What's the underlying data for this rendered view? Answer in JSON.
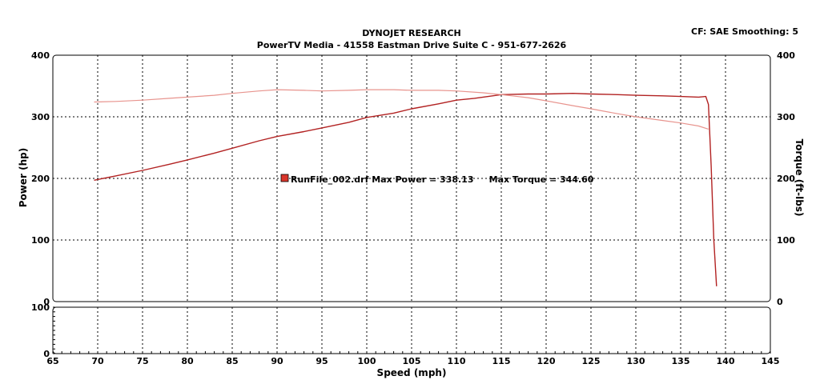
{
  "header": {
    "title": "DYNOJET RESEARCH",
    "subtitle": "PowerTV Media - 41558 Eastman Drive Suite C - 951-677-2626",
    "settings": "CF: SAE  Smoothing: 5"
  },
  "colors": {
    "power": "#b22222",
    "torque": "#e8948e",
    "legend_swatch": "#d9352b"
  },
  "chart_data": [
    {
      "type": "line",
      "xlabel": "Speed (mph)",
      "ylabel": "Power (hp)",
      "y2label": "Torque (ft-lbs)",
      "xlim": [
        65,
        145
      ],
      "ylim": [
        0,
        400
      ],
      "y2lim": [
        0,
        400
      ],
      "xticks": [
        65,
        70,
        75,
        80,
        85,
        90,
        95,
        100,
        105,
        110,
        115,
        120,
        125,
        130,
        135,
        140,
        145
      ],
      "yticks": [
        0,
        100,
        200,
        300,
        400
      ],
      "grid": true,
      "legend": {
        "text": "RunFile_002.drf Max Power = 338.13     Max Torque = 344.60",
        "position": "center"
      },
      "series": [
        {
          "role": "power",
          "x": [
            69.6,
            72,
            75,
            78,
            80,
            83,
            85,
            88,
            90,
            93,
            95,
            98,
            100,
            103,
            105,
            108,
            110,
            112,
            115,
            118,
            120,
            123,
            125,
            128,
            130,
            133,
            135,
            137,
            137.8,
            138.1,
            138.4,
            138.7,
            139.0
          ],
          "y": [
            197,
            204,
            213,
            223,
            230,
            241,
            249,
            261,
            268,
            276,
            282,
            291,
            299,
            306,
            313,
            321,
            327,
            330,
            336,
            337,
            337,
            338,
            337,
            336,
            335,
            334,
            333,
            332,
            333,
            320,
            220,
            100,
            25
          ]
        },
        {
          "role": "torque",
          "x": [
            69.6,
            72,
            75,
            78,
            80,
            83,
            85,
            88,
            90,
            93,
            95,
            98,
            100,
            103,
            105,
            108,
            110,
            113,
            115,
            118,
            120,
            123,
            125,
            128,
            130,
            133,
            135,
            137,
            138.1
          ],
          "y": [
            324,
            325,
            327,
            330,
            332,
            335,
            338,
            342,
            344,
            343,
            342,
            343,
            344,
            344,
            343,
            343,
            342,
            339,
            336,
            331,
            326,
            318,
            313,
            305,
            300,
            294,
            290,
            285,
            280
          ]
        }
      ]
    },
    {
      "type": "line",
      "xlim": [
        65,
        145
      ],
      "ylim": [
        0,
        100
      ],
      "yticks": [
        0,
        100
      ],
      "grid": true,
      "series": []
    }
  ]
}
